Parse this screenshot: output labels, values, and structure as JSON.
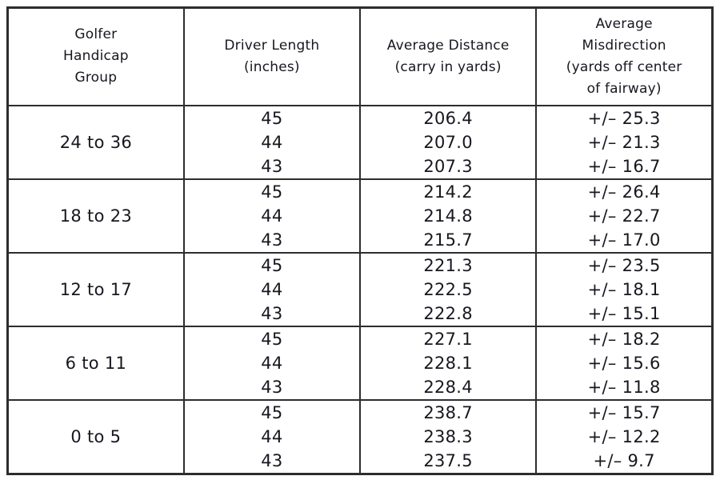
{
  "table": {
    "columns": {
      "handicap": "Golfer\nHandicap\nGroup",
      "driver_length": "Driver Length\n(inches)",
      "avg_distance": "Average Distance\n(carry in yards)",
      "avg_misdirection": "Average\nMisdirection\n(yards off center\nof fairway)"
    },
    "groups": [
      {
        "handicap": "24 to 36",
        "rows": [
          {
            "driver_length": "45",
            "avg_distance": "206.4",
            "avg_misdirection": "+/– 25.3"
          },
          {
            "driver_length": "44",
            "avg_distance": "207.0",
            "avg_misdirection": "+/– 21.3"
          },
          {
            "driver_length": "43",
            "avg_distance": "207.3",
            "avg_misdirection": "+/– 16.7"
          }
        ]
      },
      {
        "handicap": "18 to 23",
        "rows": [
          {
            "driver_length": "45",
            "avg_distance": "214.2",
            "avg_misdirection": "+/– 26.4"
          },
          {
            "driver_length": "44",
            "avg_distance": "214.8",
            "avg_misdirection": "+/– 22.7"
          },
          {
            "driver_length": "43",
            "avg_distance": "215.7",
            "avg_misdirection": "+/– 17.0"
          }
        ]
      },
      {
        "handicap": "12 to 17",
        "rows": [
          {
            "driver_length": "45",
            "avg_distance": "221.3",
            "avg_misdirection": "+/– 23.5"
          },
          {
            "driver_length": "44",
            "avg_distance": "222.5",
            "avg_misdirection": "+/– 18.1"
          },
          {
            "driver_length": "43",
            "avg_distance": "222.8",
            "avg_misdirection": "+/– 15.1"
          }
        ]
      },
      {
        "handicap": "6 to 11",
        "rows": [
          {
            "driver_length": "45",
            "avg_distance": "227.1",
            "avg_misdirection": "+/– 18.2"
          },
          {
            "driver_length": "44",
            "avg_distance": "228.1",
            "avg_misdirection": "+/– 15.6"
          },
          {
            "driver_length": "43",
            "avg_distance": "228.4",
            "avg_misdirection": "+/– 11.8"
          }
        ]
      },
      {
        "handicap": "0 to 5",
        "rows": [
          {
            "driver_length": "45",
            "avg_distance": "238.7",
            "avg_misdirection": "+/– 15.7"
          },
          {
            "driver_length": "44",
            "avg_distance": "238.3",
            "avg_misdirection": "+/– 12.2"
          },
          {
            "driver_length": "43",
            "avg_distance": "237.5",
            "avg_misdirection": "+/– 9.7"
          }
        ]
      }
    ]
  },
  "chart_data": {
    "type": "table",
    "title": "",
    "columns": [
      "Golfer Handicap Group",
      "Driver Length (inches)",
      "Average Distance (carry in yards)",
      "Average Misdirection (yards off center of fairway)"
    ],
    "rows": [
      [
        "24 to 36",
        45,
        206.4,
        25.3
      ],
      [
        "24 to 36",
        44,
        207.0,
        21.3
      ],
      [
        "24 to 36",
        43,
        207.3,
        16.7
      ],
      [
        "18 to 23",
        45,
        214.2,
        26.4
      ],
      [
        "18 to 23",
        44,
        214.8,
        22.7
      ],
      [
        "18 to 23",
        43,
        215.7,
        17.0
      ],
      [
        "12 to 17",
        45,
        221.3,
        23.5
      ],
      [
        "12 to 17",
        44,
        222.5,
        18.1
      ],
      [
        "12 to 17",
        43,
        222.8,
        15.1
      ],
      [
        "6 to 11",
        45,
        227.1,
        18.2
      ],
      [
        "6 to 11",
        44,
        228.1,
        15.6
      ],
      [
        "6 to 11",
        43,
        228.4,
        11.8
      ],
      [
        "0 to 5",
        45,
        238.7,
        15.7
      ],
      [
        "0 to 5",
        44,
        238.3,
        12.2
      ],
      [
        "0 to 5",
        43,
        237.5,
        9.7
      ]
    ],
    "notes": "Misdirection values shown with +/- prefix; each handicap group lists driver lengths 45, 44, 43 inches"
  }
}
